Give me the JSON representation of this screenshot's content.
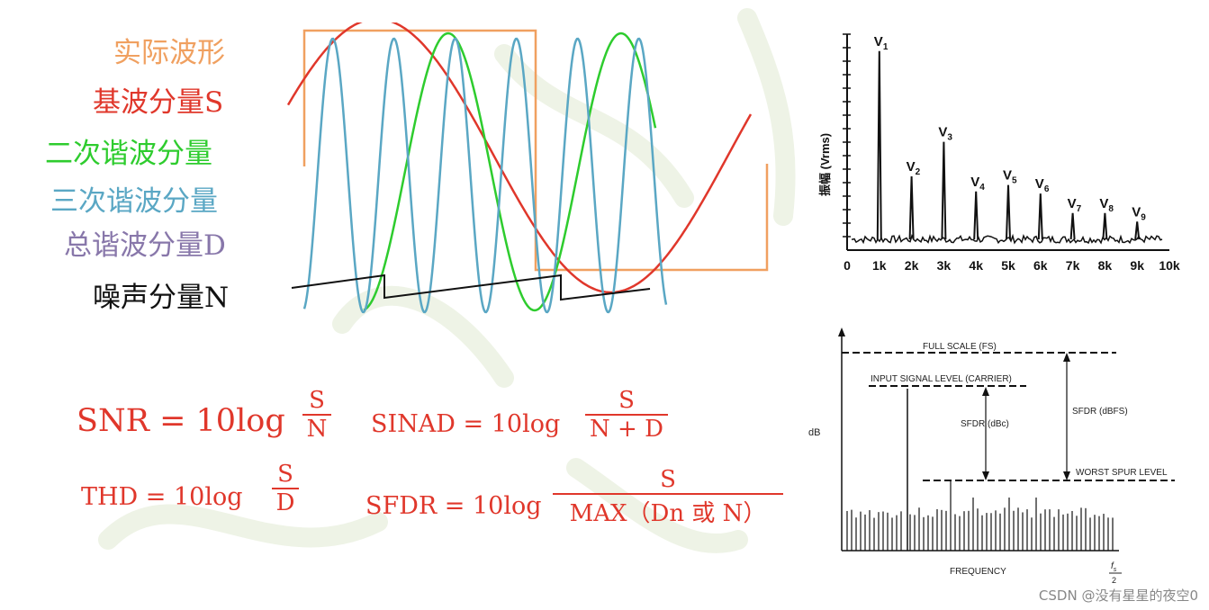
{
  "legend": {
    "actual": "实际波形",
    "fundamental": "基波分量S",
    "second": "二次谐波分量",
    "third": "三次谐波分量",
    "total": "总谐波分量D",
    "noise": "噪声分量N"
  },
  "colors": {
    "actual": "#f0a060",
    "fundamental": "#e0372b",
    "second": "#2ecc2e",
    "third": "#5aa7c4",
    "total": "#8877aa",
    "noise": "#111111",
    "formula": "#e0372b"
  },
  "formulas": {
    "snr": {
      "lhs": "SNR = 10log",
      "num": "S",
      "den": "N"
    },
    "sinad": {
      "lhs": "SINAD = 10log",
      "num": "S",
      "den": "N + D"
    },
    "thd": {
      "lhs": "THD = 10log",
      "num": "S",
      "den": "D"
    },
    "sfdr": {
      "lhs": "SFDR = 10log",
      "num": "S",
      "den": "MAX（Dn 或 N）"
    }
  },
  "chart_data": {
    "type": "line",
    "title": "",
    "ylabel": "振幅 (Vrms)",
    "xlabel": "",
    "x_ticks": [
      "0",
      "1k",
      "2k",
      "3k",
      "4k",
      "5k",
      "6k",
      "7k",
      "8k",
      "9k",
      "10k"
    ],
    "xlim": [
      0,
      10000
    ],
    "peaks": [
      {
        "label": "V",
        "sub": "1",
        "freq": 1000,
        "height": 0.88
      },
      {
        "label": "V",
        "sub": "2",
        "freq": 2000,
        "height": 0.3
      },
      {
        "label": "V",
        "sub": "3",
        "freq": 3000,
        "height": 0.46
      },
      {
        "label": "V",
        "sub": "4",
        "freq": 4000,
        "height": 0.23
      },
      {
        "label": "V",
        "sub": "5",
        "freq": 5000,
        "height": 0.26
      },
      {
        "label": "V",
        "sub": "6",
        "freq": 6000,
        "height": 0.22
      },
      {
        "label": "V",
        "sub": "7",
        "freq": 7000,
        "height": 0.13
      },
      {
        "label": "V",
        "sub": "8",
        "freq": 8000,
        "height": 0.13
      },
      {
        "label": "V",
        "sub": "9",
        "freq": 9000,
        "height": 0.09
      }
    ]
  },
  "sfdr_diagram": {
    "full_scale": "FULL SCALE (FS)",
    "input_level": "INPUT SIGNAL LEVEL (CARRIER)",
    "sfdr_dbc": "SFDR (dBc)",
    "sfdr_dbfs": "SFDR (dBFS)",
    "worst_spur": "WORST SPUR LEVEL",
    "ylabel": "dB",
    "xlabel": "FREQUENCY",
    "fs_num": "f",
    "fs_sub": "s",
    "fs_den": "2"
  },
  "watermark": "CSDN @没有星星的夜空0"
}
